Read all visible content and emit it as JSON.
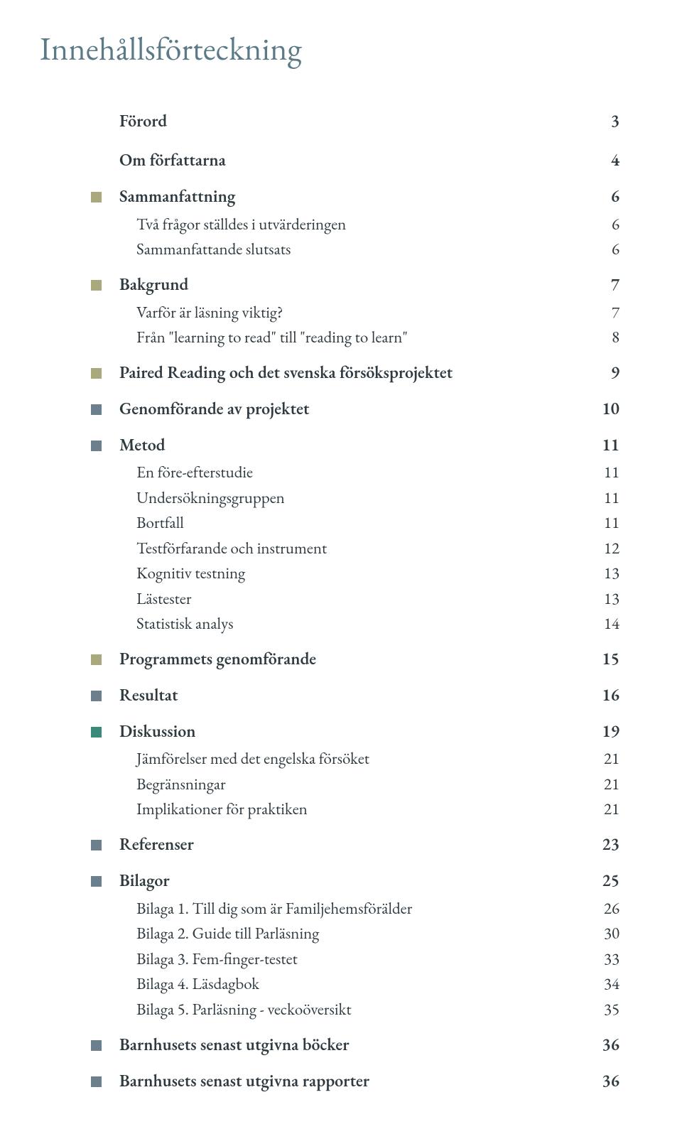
{
  "title": "Innehållsförteckning",
  "colors": {
    "title": "#5b7a87",
    "text": "#2f3a40",
    "marker_olive": "#a9a97d",
    "marker_slate": "#6b808c",
    "marker_teal": "#3a8a7c"
  },
  "entries": [
    {
      "marker": null,
      "level": "section",
      "label": "Förord",
      "page": "3"
    },
    {
      "marker": null,
      "level": "section",
      "label": "Om författarna",
      "page": "4"
    },
    {
      "marker": "olive",
      "level": "section",
      "label": "Sammanfattning",
      "page": "6"
    },
    {
      "marker": null,
      "level": "sub",
      "label": "Två frågor ställdes i utvärderingen",
      "page": "6"
    },
    {
      "marker": null,
      "level": "sub",
      "label": "Sammanfattande slutsats",
      "page": "6"
    },
    {
      "marker": "olive",
      "level": "section",
      "label": "Bakgrund",
      "page": "7"
    },
    {
      "marker": null,
      "level": "sub",
      "label": "Varför är läsning viktig?",
      "page": "7"
    },
    {
      "marker": null,
      "level": "sub",
      "label": "Från \"learning to read\" till \"reading to learn\"",
      "page": "8"
    },
    {
      "marker": "olive",
      "level": "section",
      "label": "Paired Reading och det svenska försöksprojektet",
      "page": "9"
    },
    {
      "marker": "slate",
      "level": "section",
      "label": "Genomförande av projektet",
      "page": "10"
    },
    {
      "marker": "slate",
      "level": "section",
      "label": "Metod",
      "page": "11"
    },
    {
      "marker": null,
      "level": "sub",
      "label": "En före-efterstudie",
      "page": "11"
    },
    {
      "marker": null,
      "level": "sub",
      "label": "Undersökningsgruppen",
      "page": "11"
    },
    {
      "marker": null,
      "level": "sub",
      "label": "Bortfall",
      "page": "11"
    },
    {
      "marker": null,
      "level": "sub",
      "label": "Testförfarande och instrument",
      "page": "12"
    },
    {
      "marker": null,
      "level": "sub",
      "label": "Kognitiv testning",
      "page": "13"
    },
    {
      "marker": null,
      "level": "sub",
      "label": "Lästester",
      "page": "13"
    },
    {
      "marker": null,
      "level": "sub",
      "label": "Statistisk analys",
      "page": "14"
    },
    {
      "marker": "olive",
      "level": "section",
      "label": "Programmets genomförande",
      "page": "15"
    },
    {
      "marker": "slate",
      "level": "section",
      "label": "Resultat",
      "page": "16"
    },
    {
      "marker": "teal",
      "level": "section",
      "label": "Diskussion",
      "page": "19"
    },
    {
      "marker": null,
      "level": "sub",
      "label": "Jämförelser med det engelska försöket",
      "page": "21"
    },
    {
      "marker": null,
      "level": "sub",
      "label": "Begränsningar",
      "page": "21"
    },
    {
      "marker": null,
      "level": "sub",
      "label": "Implikationer för praktiken",
      "page": "21"
    },
    {
      "marker": "slate",
      "level": "section",
      "label": "Referenser",
      "page": "23"
    },
    {
      "marker": "slate",
      "level": "section",
      "label": "Bilagor",
      "page": "25"
    },
    {
      "marker": null,
      "level": "sub",
      "label": "Bilaga 1. Till dig som är Familjehemsförälder",
      "page": "26"
    },
    {
      "marker": null,
      "level": "sub",
      "label": "Bilaga 2. Guide till Parläsning",
      "page": "30"
    },
    {
      "marker": null,
      "level": "sub",
      "label": "Bilaga 3. Fem-finger-testet",
      "page": "33"
    },
    {
      "marker": null,
      "level": "sub",
      "label": "Bilaga 4. Läsdagbok",
      "page": "34"
    },
    {
      "marker": null,
      "level": "sub",
      "label": "Bilaga 5. Parläsning - veckoöversikt",
      "page": "35"
    },
    {
      "marker": "slate",
      "level": "section",
      "label": "Barnhusets senast utgivna böcker",
      "page": "36"
    },
    {
      "marker": "slate",
      "level": "section",
      "label": "Barnhusets senast utgivna rapporter",
      "page": "36"
    }
  ]
}
